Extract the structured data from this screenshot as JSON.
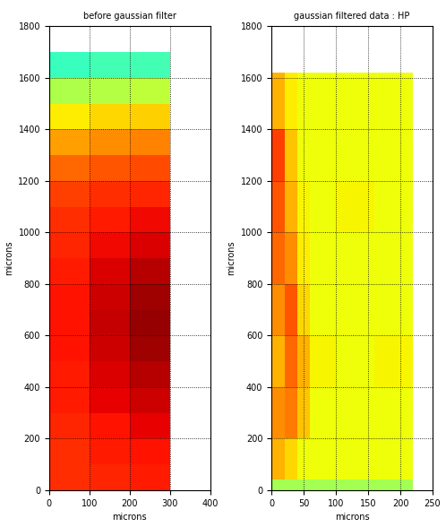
{
  "chart_data": [
    {
      "type": "heatmap",
      "title": "before gaussian filter",
      "x_label": "microns",
      "y_label": "microns",
      "xlim": [
        0,
        400
      ],
      "xticks": [
        0,
        100,
        200,
        300,
        400
      ],
      "ylim": [
        0,
        1800
      ],
      "yticks": [
        0,
        200,
        400,
        600,
        800,
        1000,
        1200,
        1400,
        1600,
        1800
      ],
      "grid": true,
      "x_edges": [
        0,
        100,
        200,
        300
      ],
      "y_edges": [
        0,
        100,
        200,
        300,
        400,
        500,
        600,
        700,
        800,
        900,
        1000,
        1100,
        1200,
        1300,
        1400,
        1500,
        1600,
        1700
      ],
      "clim": [
        0,
        1
      ],
      "cells": [
        [
          0.86,
          0.87,
          0.88
        ],
        [
          0.86,
          0.88,
          0.89
        ],
        [
          0.87,
          0.89,
          0.91
        ],
        [
          0.88,
          0.91,
          0.93
        ],
        [
          0.88,
          0.92,
          0.95
        ],
        [
          0.89,
          0.93,
          0.97
        ],
        [
          0.89,
          0.94,
          0.98
        ],
        [
          0.89,
          0.93,
          0.97
        ],
        [
          0.88,
          0.92,
          0.95
        ],
        [
          0.87,
          0.9,
          0.92
        ],
        [
          0.86,
          0.88,
          0.9
        ],
        [
          0.84,
          0.86,
          0.87
        ],
        [
          0.8,
          0.82,
          0.83
        ],
        [
          0.74,
          0.76,
          0.77
        ],
        [
          0.66,
          0.68,
          0.69
        ],
        [
          0.56,
          0.57,
          0.58
        ],
        [
          0.42,
          0.43,
          0.43
        ]
      ]
    },
    {
      "type": "heatmap",
      "title": "gaussian filtered data : HP",
      "x_label": "microns",
      "y_label": "microns",
      "xlim": [
        0,
        250
      ],
      "xticks": [
        0,
        50,
        100,
        150,
        200,
        250
      ],
      "ylim": [
        0,
        1800
      ],
      "yticks": [
        0,
        200,
        400,
        600,
        800,
        1000,
        1200,
        1400,
        1600,
        1800
      ],
      "grid": true,
      "x_edges": [
        0,
        20,
        40,
        60,
        100,
        160,
        220
      ],
      "y_edges": [
        0,
        40,
        200,
        400,
        600,
        800,
        1000,
        1200,
        1400,
        1620
      ],
      "clim": [
        0,
        1
      ],
      "cells": [
        [
          0.55,
          0.55,
          0.55,
          0.55,
          0.55,
          0.55
        ],
        [
          0.72,
          0.68,
          0.64,
          0.64,
          0.64,
          0.64
        ],
        [
          0.76,
          0.78,
          0.7,
          0.64,
          0.64,
          0.64
        ],
        [
          0.72,
          0.8,
          0.72,
          0.65,
          0.64,
          0.65
        ],
        [
          0.76,
          0.82,
          0.68,
          0.64,
          0.64,
          0.64
        ],
        [
          0.8,
          0.76,
          0.66,
          0.64,
          0.64,
          0.64
        ],
        [
          0.82,
          0.72,
          0.65,
          0.64,
          0.65,
          0.64
        ],
        [
          0.84,
          0.7,
          0.64,
          0.64,
          0.64,
          0.64
        ],
        [
          0.72,
          0.66,
          0.64,
          0.64,
          0.64,
          0.64
        ]
      ]
    }
  ]
}
